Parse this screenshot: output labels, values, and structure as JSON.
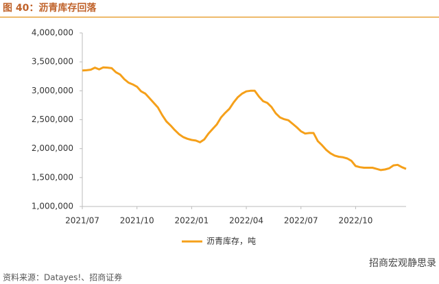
{
  "chart_data": {
    "type": "line",
    "title": "图 40：沥青库存回落",
    "categories": [
      "2021/07",
      null,
      null,
      null,
      null,
      null,
      null,
      null,
      null,
      null,
      null,
      null,
      null,
      "2021/10",
      null,
      null,
      null,
      null,
      null,
      null,
      null,
      null,
      null,
      null,
      null,
      null,
      "2022/01",
      null,
      null,
      null,
      null,
      null,
      null,
      null,
      null,
      null,
      null,
      null,
      null,
      "2022/04",
      null,
      null,
      null,
      null,
      null,
      null,
      null,
      null,
      null,
      null,
      null,
      null,
      "2022/07",
      null,
      null,
      null,
      null,
      null,
      null,
      null,
      null,
      null,
      null,
      null,
      null,
      "2022/10",
      null,
      null,
      null,
      null,
      null,
      null,
      null,
      null,
      null,
      null,
      null,
      null
    ],
    "series": [
      {
        "name": "沥青库存，吨",
        "color": "#f5a01a",
        "values": [
          3350000,
          3355000,
          3365000,
          3400000,
          3370000,
          3405000,
          3400000,
          3390000,
          3320000,
          3280000,
          3200000,
          3140000,
          3110000,
          3070000,
          2990000,
          2950000,
          2870000,
          2790000,
          2710000,
          2580000,
          2470000,
          2400000,
          2320000,
          2250000,
          2200000,
          2170000,
          2150000,
          2140000,
          2110000,
          2160000,
          2260000,
          2340000,
          2420000,
          2540000,
          2620000,
          2690000,
          2800000,
          2890000,
          2950000,
          2990000,
          3000000,
          3000000,
          2900000,
          2820000,
          2790000,
          2720000,
          2610000,
          2540000,
          2510000,
          2490000,
          2430000,
          2370000,
          2300000,
          2260000,
          2270000,
          2270000,
          2130000,
          2060000,
          1980000,
          1920000,
          1880000,
          1860000,
          1850000,
          1830000,
          1790000,
          1700000,
          1680000,
          1670000,
          1670000,
          1670000,
          1650000,
          1630000,
          1640000,
          1660000,
          1710000,
          1720000,
          1680000,
          1650000
        ]
      }
    ],
    "ylim": [
      1000000,
      4000000
    ],
    "yticks": [
      {
        "value": 1000000,
        "label": "1,000,000"
      },
      {
        "value": 1500000,
        "label": "1,500,000"
      },
      {
        "value": 2000000,
        "label": "2,000,000"
      },
      {
        "value": 2500000,
        "label": "2,500,000"
      },
      {
        "value": 3000000,
        "label": "3,000,000"
      },
      {
        "value": 3500000,
        "label": "3,500,000"
      },
      {
        "value": 4000000,
        "label": "4,000,000"
      }
    ],
    "grid": false,
    "legend": "bottom"
  },
  "source": "资料来源：Datayes!、招商证券",
  "watermark": "招商宏观静思录"
}
